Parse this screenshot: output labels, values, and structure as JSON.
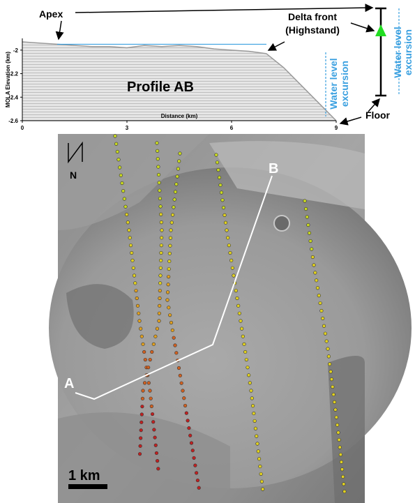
{
  "chart_data": {
    "type": "area",
    "title": "Profile AB",
    "x_label": "Distance (km)",
    "y_label": "MOLA Elevation (km)",
    "x": [
      0,
      0.5,
      1,
      1.5,
      2,
      2.5,
      3,
      3.5,
      4,
      4.5,
      5,
      5.5,
      6,
      6.5,
      7,
      7.5,
      8,
      8.5,
      9
    ],
    "values": [
      -1.93,
      -1.94,
      -1.95,
      -1.96,
      -1.97,
      -1.97,
      -1.98,
      -1.96,
      -1.97,
      -1.96,
      -1.97,
      -1.99,
      -2.0,
      -2.01,
      -2.03,
      -2.15,
      -2.3,
      -2.45,
      -2.6
    ],
    "color": "#999999",
    "water_level": -1.95,
    "water_color": "#3aa0e0",
    "xlim": [
      0,
      9
    ],
    "xticks": [
      0,
      3,
      6,
      9
    ],
    "ylim": [
      -2.6,
      -1.9
    ],
    "yticks": [
      -2,
      -2.2,
      -2.4,
      -2.6
    ],
    "annotations": {
      "apex": "Apex",
      "delta_front": [
        "Delta front",
        "(Highstand)"
      ],
      "floor": "Floor",
      "excursion_inner": [
        "Water level",
        "excursion"
      ],
      "excursion_outer": [
        "Water level",
        "excursion"
      ]
    }
  },
  "map": {
    "label_a": "A",
    "label_b": "B",
    "north": "N",
    "scale": "1 km"
  }
}
